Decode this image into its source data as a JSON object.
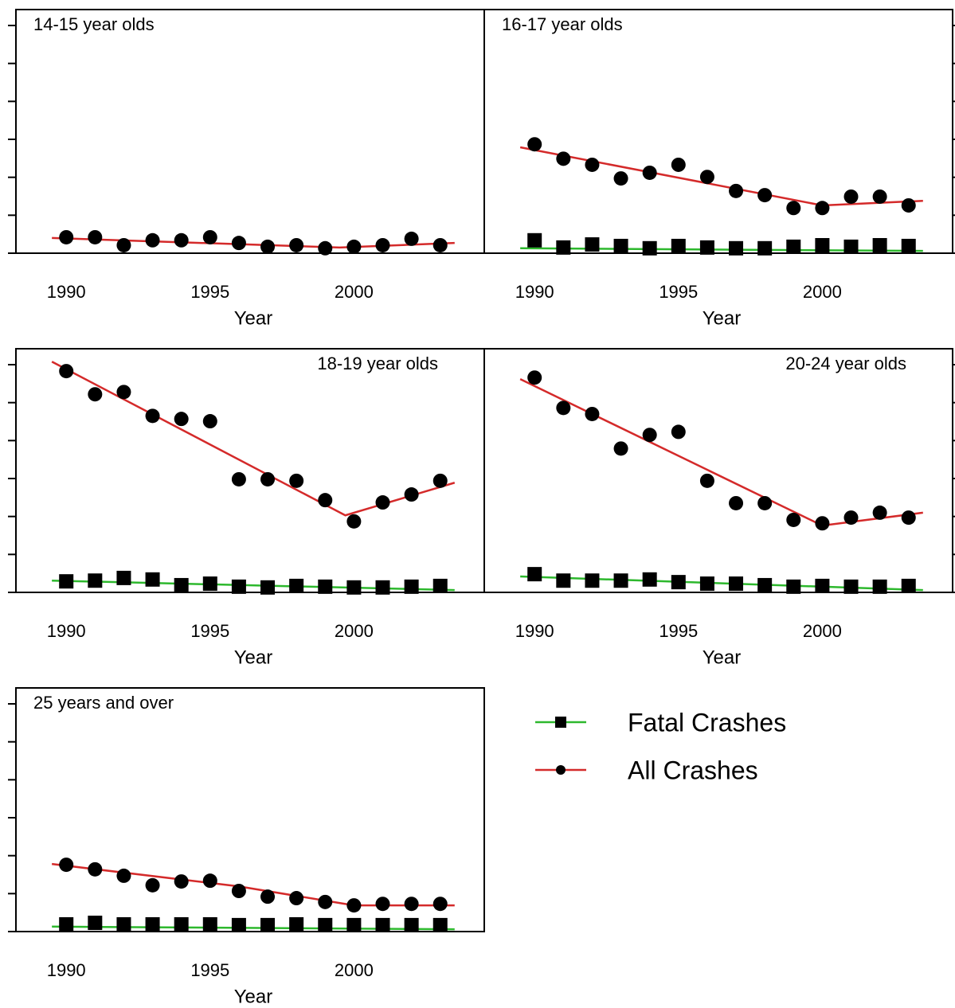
{
  "chart_data": [
    {
      "type": "scatter",
      "title": "14-15 year olds",
      "title_corner": "upper left",
      "yaxis_side": "left",
      "xlabel": "Year",
      "x": [
        1990,
        1991,
        1992,
        1993,
        1994,
        1995,
        1996,
        1997,
        1998,
        1999,
        2000,
        2001,
        2002,
        2003
      ],
      "xlim": [
        1988.25,
        2004.53
      ],
      "xticks": [
        1990,
        1995,
        2000
      ],
      "ylim": [
        0,
        6.42
      ],
      "yticks": [
        0,
        1,
        2,
        3,
        4,
        5,
        6
      ],
      "ytick_labels": false,
      "series": [
        {
          "name": "All Crashes",
          "marker": "circle",
          "color": "#000000",
          "values": [
            0.42,
            0.42,
            0.21,
            0.34,
            0.34,
            0.42,
            0.27,
            0.17,
            0.21,
            0.13,
            0.17,
            0.21,
            0.38,
            0.21
          ],
          "fit": {
            "color": "#d42a2a",
            "x": [
              1989.5,
              1999.5,
              2003.5
            ],
            "values": [
              0.4,
              0.15,
              0.27
            ]
          }
        }
      ]
    },
    {
      "type": "scatter",
      "title": "16-17 year olds",
      "title_corner": "upper left",
      "yaxis_side": "right",
      "xlabel": "Year",
      "x": [
        1990,
        1991,
        1992,
        1993,
        1994,
        1995,
        1996,
        1997,
        1998,
        1999,
        2000,
        2001,
        2002,
        2003
      ],
      "xlim": [
        1988.25,
        2004.53
      ],
      "xticks": [
        1990,
        1995,
        2000
      ],
      "ylim": [
        0,
        6.42
      ],
      "yticks": [
        0,
        1,
        2,
        3,
        4,
        5,
        6
      ],
      "ytick_labels": false,
      "series": [
        {
          "name": "Fatal Crashes",
          "marker": "square",
          "color": "#000000",
          "values": [
            0.34,
            0.15,
            0.23,
            0.19,
            0.13,
            0.19,
            0.15,
            0.13,
            0.13,
            0.17,
            0.21,
            0.17,
            0.21,
            0.19
          ],
          "fit": {
            "color": "#2db82d",
            "x": [
              1989.5,
              2003.5
            ],
            "values": [
              0.13,
              0.06
            ]
          }
        },
        {
          "name": "All Crashes",
          "marker": "circle",
          "color": "#000000",
          "values": [
            2.87,
            2.49,
            2.33,
            1.97,
            2.12,
            2.33,
            2.01,
            1.64,
            1.53,
            1.19,
            1.19,
            1.49,
            1.49,
            1.26
          ],
          "fit": {
            "color": "#d42a2a",
            "x": [
              1989.5,
              2000,
              2003.5
            ],
            "values": [
              2.79,
              1.26,
              1.38
            ]
          }
        }
      ]
    },
    {
      "type": "scatter",
      "title": "18-19 year olds",
      "title_corner": "upper right",
      "yaxis_side": "left",
      "xlabel": "Year",
      "x": [
        1990,
        1991,
        1992,
        1993,
        1994,
        1995,
        1996,
        1997,
        1998,
        1999,
        2000,
        2001,
        2002,
        2003
      ],
      "xlim": [
        1988.25,
        2004.53
      ],
      "xticks": [
        1990,
        1995,
        2000
      ],
      "ylim": [
        0,
        6.42
      ],
      "yticks": [
        0,
        1,
        2,
        3,
        4,
        5,
        6
      ],
      "ytick_labels": false,
      "series": [
        {
          "name": "Fatal Crashes",
          "marker": "square",
          "color": "#000000",
          "values": [
            0.29,
            0.31,
            0.38,
            0.34,
            0.19,
            0.23,
            0.15,
            0.13,
            0.17,
            0.15,
            0.13,
            0.13,
            0.15,
            0.17
          ],
          "fit": {
            "color": "#2db82d",
            "x": [
              1989.5,
              2003.5
            ],
            "values": [
              0.31,
              0.06
            ]
          }
        },
        {
          "name": "All Crashes",
          "marker": "circle",
          "color": "#000000",
          "values": [
            5.83,
            5.22,
            5.28,
            4.65,
            4.57,
            4.51,
            2.98,
            2.98,
            2.94,
            2.43,
            1.87,
            2.37,
            2.58,
            2.94
          ],
          "fit": {
            "color": "#d42a2a",
            "x": [
              1989.5,
              1999.7,
              2003.5
            ],
            "values": [
              6.08,
              2.03,
              2.89
            ]
          }
        }
      ]
    },
    {
      "type": "scatter",
      "title": "20-24 year olds",
      "title_corner": "upper right",
      "yaxis_side": "right",
      "xlabel": "Year",
      "x": [
        1990,
        1991,
        1992,
        1993,
        1994,
        1995,
        1996,
        1997,
        1998,
        1999,
        2000,
        2001,
        2002,
        2003
      ],
      "xlim": [
        1988.25,
        2004.53
      ],
      "xticks": [
        1990,
        1995,
        2000
      ],
      "ylim": [
        0,
        6.42
      ],
      "yticks": [
        0,
        1,
        2,
        3,
        4,
        5,
        6
      ],
      "ytick_labels": false,
      "series": [
        {
          "name": "Fatal Crashes",
          "marker": "square",
          "color": "#000000",
          "values": [
            0.48,
            0.31,
            0.31,
            0.31,
            0.34,
            0.27,
            0.23,
            0.23,
            0.19,
            0.15,
            0.17,
            0.15,
            0.15,
            0.17
          ],
          "fit": {
            "color": "#2db82d",
            "x": [
              1989.5,
              2003.5
            ],
            "values": [
              0.42,
              0.06
            ]
          }
        },
        {
          "name": "All Crashes",
          "marker": "circle",
          "color": "#000000",
          "values": [
            5.66,
            4.86,
            4.7,
            3.79,
            4.15,
            4.23,
            2.94,
            2.35,
            2.35,
            1.91,
            1.82,
            1.97,
            2.1,
            1.97
          ],
          "fit": {
            "color": "#d42a2a",
            "x": [
              1989.5,
              2000,
              2003.5
            ],
            "values": [
              5.62,
              1.76,
              2.1
            ]
          }
        }
      ]
    },
    {
      "type": "scatter",
      "title": "25 years and over",
      "title_corner": "upper left",
      "yaxis_side": "left",
      "legend": "outside right",
      "xlabel": "Year",
      "x": [
        1990,
        1991,
        1992,
        1993,
        1994,
        1995,
        1996,
        1997,
        1998,
        1999,
        2000,
        2001,
        2002,
        2003
      ],
      "xlim": [
        1988.25,
        2004.53
      ],
      "xticks": [
        1990,
        1995,
        2000
      ],
      "ylim": [
        0,
        6.42
      ],
      "yticks": [
        0,
        1,
        2,
        3,
        4,
        5,
        6
      ],
      "ytick_labels": false,
      "series": [
        {
          "name": "Fatal Crashes",
          "marker": "square",
          "color": "#000000",
          "values": [
            0.19,
            0.23,
            0.19,
            0.19,
            0.19,
            0.19,
            0.17,
            0.17,
            0.19,
            0.17,
            0.17,
            0.17,
            0.17,
            0.17
          ],
          "fit": {
            "color": "#2db82d",
            "x": [
              1989.5,
              2003.5
            ],
            "values": [
              0.13,
              0.06
            ]
          }
        },
        {
          "name": "All Crashes",
          "marker": "circle",
          "color": "#000000",
          "values": [
            1.76,
            1.64,
            1.47,
            1.22,
            1.32,
            1.34,
            1.07,
            0.92,
            0.88,
            0.78,
            0.69,
            0.73,
            0.73,
            0.73
          ],
          "fit": {
            "color": "#d42a2a",
            "x": [
              1989.5,
              1996,
              2000,
              2003.5
            ],
            "values": [
              1.78,
              1.19,
              0.69,
              0.69
            ]
          }
        }
      ]
    }
  ]
}
